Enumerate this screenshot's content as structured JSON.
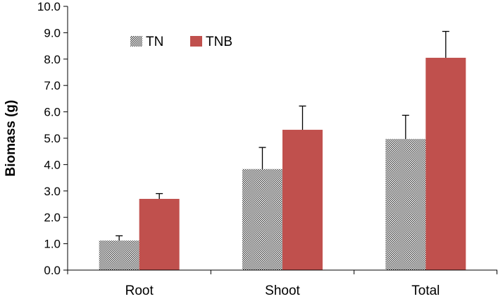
{
  "chart_data": {
    "type": "bar",
    "title": "",
    "xlabel": "",
    "ylabel": "Biomass (g)",
    "ylim": [
      0,
      10
    ],
    "ytick_step": 1,
    "ytick_labels": [
      "0.0",
      "1.0",
      "2.0",
      "3.0",
      "4.0",
      "5.0",
      "6.0",
      "7.0",
      "8.0",
      "9.0",
      "10.0"
    ],
    "categories": [
      "Root",
      "Shoot",
      "Total"
    ],
    "series": [
      {
        "name": "TN",
        "values": [
          1.12,
          3.83,
          4.97
        ],
        "errors": [
          0.18,
          0.82,
          0.9
        ],
        "color": "#7f7f7f",
        "pattern": "checkered"
      },
      {
        "name": "TNB",
        "values": [
          2.7,
          5.32,
          8.05
        ],
        "errors": [
          0.2,
          0.9,
          1.0
        ],
        "color": "#c0504d",
        "pattern": "solid"
      }
    ],
    "grid": false,
    "legend_position": "top-left",
    "error_bars": "positive"
  }
}
